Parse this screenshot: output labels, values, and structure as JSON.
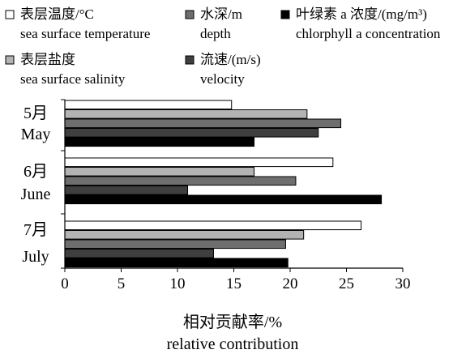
{
  "chart_data": {
    "type": "bar",
    "orientation": "horizontal",
    "categories": [
      {
        "zh": "5月",
        "en": "May"
      },
      {
        "zh": "6月",
        "en": "June"
      },
      {
        "zh": "7月",
        "en": "July"
      }
    ],
    "series": [
      {
        "name_zh": "表层温度/°C",
        "name_en": "sea surface temperature",
        "color": "#ffffff",
        "values": [
          14.8,
          23.8,
          26.3
        ]
      },
      {
        "name_zh": "表层盐度",
        "name_en": "sea surface salinity",
        "color": "#b3b3b3",
        "values": [
          21.5,
          16.8,
          21.2
        ]
      },
      {
        "name_zh": "水深/m",
        "name_en": "depth",
        "color": "#6e6e6e",
        "values": [
          24.5,
          20.5,
          19.6
        ]
      },
      {
        "name_zh": "流速/(m/s)",
        "name_en": "velocity",
        "color": "#3f3f3f",
        "values": [
          22.5,
          10.9,
          13.2
        ]
      },
      {
        "name_zh": "叶绿素 a 浓度/(mg/m³)",
        "name_en": "chlorphyll a concentration",
        "color": "#000000",
        "values": [
          16.8,
          28.1,
          19.8
        ]
      }
    ],
    "xlabel_zh": "相对贡献率/%",
    "xlabel_en": "relative contribution",
    "xlim": [
      0,
      30
    ],
    "xticks": [
      0,
      5,
      10,
      15,
      20,
      25,
      30
    ],
    "grid": false,
    "legend_placement": "top"
  }
}
